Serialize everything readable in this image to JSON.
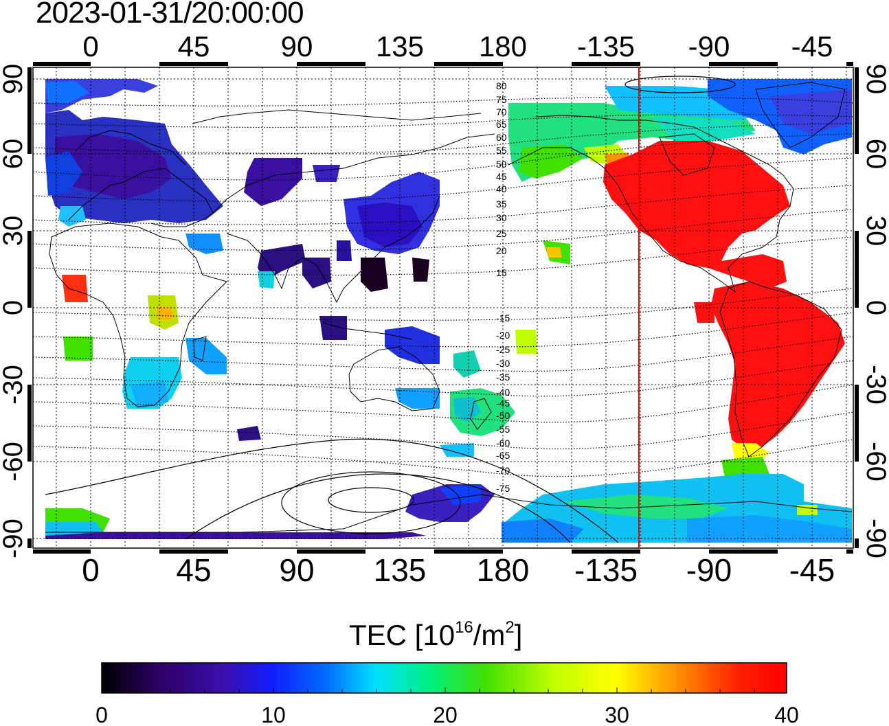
{
  "title": "2023-01-31/20:00:00",
  "map": {
    "x_ticks_top": [
      "0",
      "45",
      "90",
      "135",
      "180",
      "-135",
      "-90",
      "-45"
    ],
    "x_ticks_bottom": [
      "0",
      "45",
      "90",
      "135",
      "180",
      "-135",
      "-90",
      "-45"
    ],
    "y_ticks_left": [
      "90",
      "60",
      "30",
      "0",
      "-30",
      "-60",
      "-90"
    ],
    "y_ticks_right": [
      "90",
      "60",
      "30",
      "0",
      "-30",
      "-60",
      "-90"
    ],
    "magnetic_latitude_labels_north": [
      "80",
      "75",
      "70",
      "65",
      "60",
      "55",
      "50",
      "45",
      "40",
      "35",
      "30",
      "25",
      "20",
      "15"
    ],
    "magnetic_latitude_labels_south": [
      "-15",
      "-20",
      "-25",
      "-30",
      "-35",
      "-40",
      "-45",
      "-50",
      "-55",
      "-60",
      "-65",
      "-70",
      "-75"
    ],
    "subsolar_line_color": "#ff0000",
    "gridlines": true
  },
  "colorbar": {
    "label_main": "TEC  [10",
    "label_exp": "16",
    "label_mid": "/m",
    "label_exp2": "2",
    "label_end": "]",
    "ticks": [
      "0",
      "10",
      "20",
      "30",
      "40"
    ],
    "range": [
      0,
      40
    ],
    "stops": [
      "#000000",
      "#2a0060",
      "#3a10b0",
      "#1020ff",
      "#0070ff",
      "#00e0ff",
      "#00f080",
      "#40e000",
      "#c0ff00",
      "#ffff00",
      "#ff9000",
      "#ff2000",
      "#ff0000"
    ]
  }
}
